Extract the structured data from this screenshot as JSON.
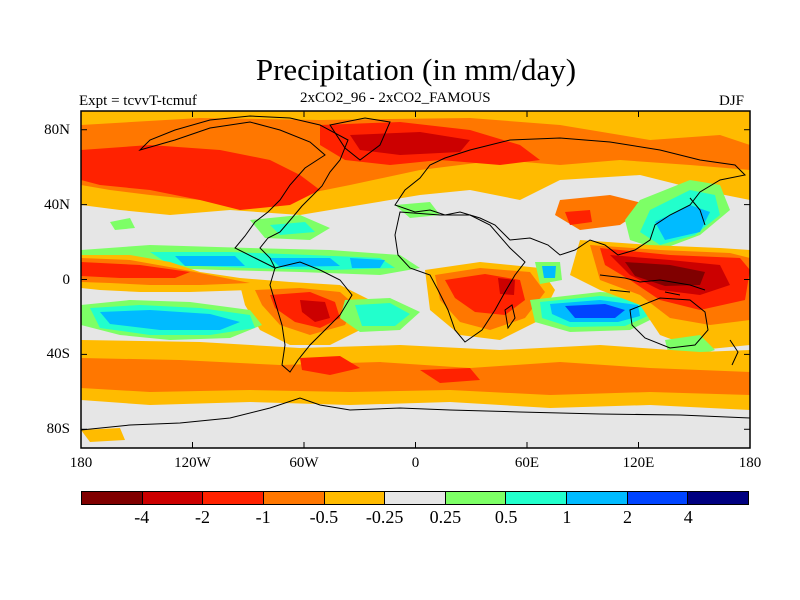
{
  "figure": {
    "title": "Precipitation (in mm/day)",
    "subtitle_left": "Expt = tcvvT-tcmuf",
    "subtitle_center": "2xCO2_96 - 2xCO2_FAMOUS",
    "subtitle_right": "DJF"
  },
  "map": {
    "projection": "cylindrical-equidistant",
    "lon_range": [
      -180,
      180
    ],
    "lat_range": [
      -90,
      90
    ],
    "lat_ticks": [
      {
        "value": 80,
        "label": "80N"
      },
      {
        "value": 40,
        "label": "40N"
      },
      {
        "value": 0,
        "label": "0"
      },
      {
        "value": -40,
        "label": "40S"
      },
      {
        "value": -80,
        "label": "80S"
      }
    ],
    "lon_ticks": [
      {
        "value": -180,
        "label": "180"
      },
      {
        "value": -120,
        "label": "120W"
      },
      {
        "value": -60,
        "label": "60W"
      },
      {
        "value": 0,
        "label": "0"
      },
      {
        "value": 60,
        "label": "60E"
      },
      {
        "value": 120,
        "label": "120E"
      },
      {
        "value": 180,
        "label": "180"
      }
    ],
    "background_color": "#e6e6e6"
  },
  "colorbar": {
    "colors": [
      "#800000",
      "#cc0000",
      "#ff2200",
      "#ff7700",
      "#ffbb00",
      "#e6e6e6",
      "#7dff66",
      "#22ffcc",
      "#00bbff",
      "#0044ff",
      "#000080"
    ],
    "labels": [
      "-4",
      "-2",
      "-1",
      "-0.5",
      "-0.25",
      "0.25",
      "0.5",
      "1",
      "2",
      "4"
    ]
  }
}
